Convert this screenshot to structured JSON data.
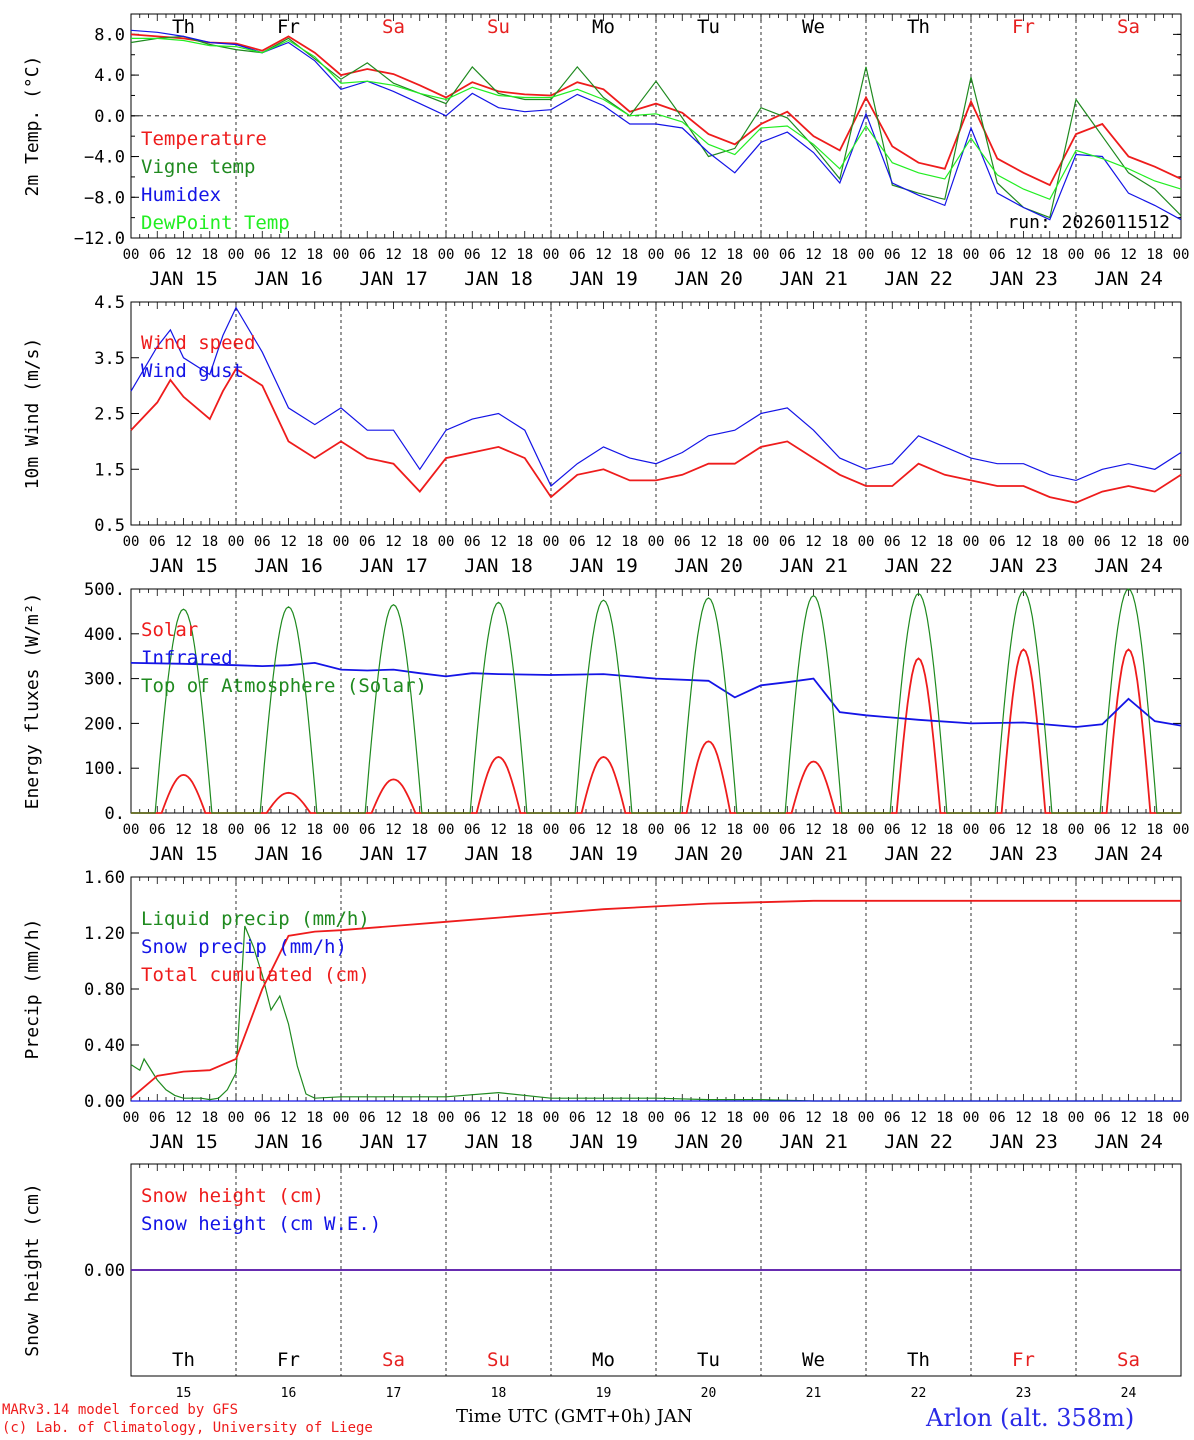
{
  "colors": {
    "red": "#ee1c1c",
    "green": "#1f8a1f",
    "blue": "#1414e6",
    "lightgreen": "#22ee22",
    "weekend": "#e62020",
    "location": "#2a2ae6"
  },
  "days": {
    "labels": [
      "Th",
      "Fr",
      "Sa",
      "Su",
      "Mo",
      "Tu",
      "We",
      "Th",
      "Fr",
      "Sa"
    ],
    "weekend": [
      false,
      false,
      true,
      true,
      false,
      false,
      false,
      false,
      true,
      true
    ],
    "dates": [
      "JAN 15",
      "JAN 16",
      "JAN 17",
      "JAN 18",
      "JAN 19",
      "JAN 20",
      "JAN 21",
      "JAN 22",
      "JAN 23",
      "JAN 24"
    ],
    "day_numbers": [
      "15",
      "16",
      "17",
      "18",
      "19",
      "20",
      "21",
      "22",
      "23",
      "24"
    ],
    "hour_ticks": [
      "00",
      "06",
      "12",
      "18"
    ],
    "final_hour_tick": "00"
  },
  "footer": {
    "model_line": "MARv3.14 model forced by GFS",
    "credit_line": "(c) Lab. of Climatology, University of Liege",
    "axis_title": "Time UTC (GMT+0h) JAN",
    "location": "Arlon (alt. 358m)"
  },
  "chart_data": [
    {
      "type": "line",
      "title": "",
      "ylabel": "2m Temp. (°C)",
      "ylim": [
        -12,
        10
      ],
      "yticks": [
        8,
        4,
        0,
        -4,
        -8,
        -12
      ],
      "ytick_labels": [
        "8.0",
        "4.0",
        "0.0",
        "−4.0",
        "−8.0",
        "−12.0"
      ],
      "zero_line": true,
      "annotation": "run: 2026011512",
      "x_units": "hours since JAN 15 00 UTC",
      "series": [
        {
          "name": "Temperature",
          "color": "red",
          "x": [
            0,
            6,
            12,
            18,
            24,
            30,
            36,
            42,
            48,
            54,
            60,
            66,
            72,
            78,
            84,
            90,
            96,
            102,
            108,
            114,
            120,
            126,
            132,
            138,
            144,
            150,
            156,
            162,
            168,
            174,
            180,
            186,
            192,
            198,
            204,
            210,
            216,
            222,
            228,
            234,
            240
          ],
          "y": [
            8.0,
            7.8,
            7.6,
            7.2,
            7.1,
            6.4,
            7.8,
            6.2,
            4.0,
            4.6,
            4.1,
            3.0,
            1.8,
            3.3,
            2.4,
            2.1,
            2.0,
            3.3,
            2.6,
            0.4,
            1.2,
            0.3,
            -1.8,
            -2.8,
            -0.8,
            0.4,
            -2.0,
            -3.4,
            1.8,
            -3.0,
            -4.6,
            -5.2,
            1.4,
            -4.2,
            -5.6,
            -6.8,
            -1.8,
            -0.8,
            -4.0,
            -5.0,
            -6.2
          ]
        },
        {
          "name": "Vigne temp",
          "color": "green",
          "x": [
            0,
            6,
            12,
            18,
            24,
            30,
            36,
            42,
            48,
            54,
            60,
            66,
            72,
            78,
            84,
            90,
            96,
            102,
            108,
            114,
            120,
            126,
            132,
            138,
            144,
            150,
            156,
            162,
            168,
            174,
            180,
            186,
            192,
            198,
            204,
            210,
            216,
            222,
            228,
            234,
            240
          ],
          "y": [
            7.2,
            7.6,
            7.8,
            7.0,
            6.5,
            6.2,
            7.6,
            5.6,
            3.6,
            5.2,
            3.2,
            2.2,
            1.2,
            4.8,
            2.2,
            1.6,
            1.6,
            4.8,
            1.8,
            0.0,
            3.4,
            -0.2,
            -4.0,
            -3.2,
            0.8,
            -0.2,
            -3.0,
            -6.2,
            4.8,
            -6.8,
            -7.6,
            -8.2,
            3.8,
            -6.6,
            -9.0,
            -10.0,
            1.6,
            -2.0,
            -5.6,
            -7.2,
            -9.8
          ]
        },
        {
          "name": "Humidex",
          "color": "blue",
          "x": [
            0,
            6,
            12,
            18,
            24,
            30,
            36,
            42,
            48,
            54,
            60,
            66,
            72,
            78,
            84,
            90,
            96,
            102,
            108,
            114,
            120,
            126,
            132,
            138,
            144,
            150,
            156,
            162,
            168,
            174,
            180,
            186,
            192,
            198,
            204,
            210,
            216,
            222,
            228,
            234,
            240
          ],
          "y": [
            8.4,
            8.2,
            7.8,
            7.2,
            7.0,
            6.2,
            7.2,
            5.4,
            2.6,
            3.4,
            2.4,
            1.2,
            0.0,
            2.2,
            0.8,
            0.4,
            0.6,
            2.1,
            1.0,
            -0.8,
            -0.8,
            -1.2,
            -3.6,
            -5.6,
            -2.6,
            -1.6,
            -3.6,
            -6.6,
            0.2,
            -6.6,
            -7.8,
            -8.8,
            -1.2,
            -7.6,
            -9.0,
            -10.2,
            -3.8,
            -4.0,
            -7.6,
            -8.8,
            -10.2
          ]
        },
        {
          "name": "DewPoint Temp",
          "color": "lightgreen",
          "x": [
            0,
            6,
            12,
            18,
            24,
            30,
            36,
            42,
            48,
            54,
            60,
            66,
            72,
            78,
            84,
            90,
            96,
            102,
            108,
            114,
            120,
            126,
            132,
            138,
            144,
            150,
            156,
            162,
            168,
            174,
            180,
            186,
            192,
            198,
            204,
            210,
            216,
            222,
            228,
            234,
            240
          ],
          "y": [
            7.6,
            7.6,
            7.4,
            6.9,
            6.8,
            6.2,
            7.4,
            5.8,
            3.2,
            3.4,
            3.0,
            2.2,
            1.6,
            2.8,
            2.0,
            1.8,
            1.8,
            2.6,
            1.6,
            0.0,
            0.2,
            -0.6,
            -2.8,
            -3.8,
            -1.2,
            -1.0,
            -2.8,
            -5.2,
            -1.0,
            -4.6,
            -5.6,
            -6.2,
            -2.2,
            -5.8,
            -7.2,
            -8.2,
            -3.4,
            -4.2,
            -5.2,
            -6.4,
            -7.2
          ]
        }
      ],
      "legend": [
        "Temperature",
        "Vigne temp",
        "Humidex",
        "DewPoint Temp"
      ]
    },
    {
      "type": "line",
      "title": "",
      "ylabel": "10m Wind (m/s)",
      "ylim": [
        0.5,
        4.5
      ],
      "yticks": [
        4.5,
        3.5,
        2.5,
        1.5,
        0.5
      ],
      "ytick_labels": [
        "4.5",
        "3.5",
        "2.5",
        "1.5",
        "0.5"
      ],
      "x_units": "hours since JAN 15 00 UTC",
      "series": [
        {
          "name": "Wind speed",
          "color": "red",
          "x": [
            0,
            6,
            9,
            12,
            18,
            21,
            24,
            30,
            36,
            42,
            48,
            54,
            60,
            66,
            72,
            78,
            84,
            90,
            96,
            102,
            108,
            114,
            120,
            126,
            132,
            138,
            144,
            150,
            156,
            162,
            168,
            174,
            180,
            186,
            192,
            198,
            204,
            210,
            216,
            222,
            228,
            234,
            240
          ],
          "y": [
            2.2,
            2.7,
            3.1,
            2.8,
            2.4,
            2.9,
            3.3,
            3.0,
            2.0,
            1.7,
            2.0,
            1.7,
            1.6,
            1.1,
            1.7,
            1.8,
            1.9,
            1.7,
            1.0,
            1.4,
            1.5,
            1.3,
            1.3,
            1.4,
            1.6,
            1.6,
            1.9,
            2.0,
            1.7,
            1.4,
            1.2,
            1.2,
            1.6,
            1.4,
            1.3,
            1.2,
            1.2,
            1.0,
            0.9,
            1.1,
            1.2,
            1.1,
            1.4
          ]
        },
        {
          "name": "Wind gust",
          "color": "blue",
          "x": [
            0,
            6,
            9,
            12,
            18,
            21,
            24,
            30,
            36,
            42,
            48,
            54,
            60,
            66,
            72,
            78,
            84,
            90,
            96,
            102,
            108,
            114,
            120,
            126,
            132,
            138,
            144,
            150,
            156,
            162,
            168,
            174,
            180,
            186,
            192,
            198,
            204,
            210,
            216,
            222,
            228,
            234,
            240
          ],
          "y": [
            2.9,
            3.7,
            4.0,
            3.5,
            3.2,
            3.9,
            4.4,
            3.6,
            2.6,
            2.3,
            2.6,
            2.2,
            2.2,
            1.5,
            2.2,
            2.4,
            2.5,
            2.2,
            1.2,
            1.6,
            1.9,
            1.7,
            1.6,
            1.8,
            2.1,
            2.2,
            2.5,
            2.6,
            2.2,
            1.7,
            1.5,
            1.6,
            2.1,
            1.9,
            1.7,
            1.6,
            1.6,
            1.4,
            1.3,
            1.5,
            1.6,
            1.5,
            1.8
          ]
        }
      ],
      "legend": [
        "Wind speed",
        "Wind gust"
      ]
    },
    {
      "type": "line",
      "title": "",
      "ylabel": "Energy fluxes (W/m²)",
      "ylim": [
        0,
        500
      ],
      "yticks": [
        500,
        400,
        300,
        200,
        100,
        0
      ],
      "ytick_labels": [
        "500.",
        "400.",
        "300.",
        "200.",
        "100.",
        "0."
      ],
      "x_units": "hours since JAN 15 00 UTC",
      "series": [
        {
          "name": "Solar",
          "color": "red",
          "daily_peak_hour": 12,
          "daily_peaks": [
            85,
            45,
            75,
            125,
            125,
            160,
            115,
            345,
            365,
            365
          ]
        },
        {
          "name": "Infrared",
          "color": "blue",
          "x": [
            0,
            12,
            24,
            30,
            36,
            42,
            48,
            54,
            60,
            66,
            72,
            78,
            84,
            96,
            108,
            120,
            132,
            138,
            144,
            150,
            156,
            162,
            168,
            180,
            192,
            204,
            216,
            222,
            228,
            234,
            240
          ],
          "y": [
            335,
            333,
            330,
            328,
            330,
            335,
            320,
            318,
            320,
            312,
            305,
            312,
            310,
            308,
            310,
            300,
            295,
            258,
            285,
            292,
            300,
            225,
            218,
            208,
            200,
            202,
            192,
            198,
            255,
            205,
            195
          ]
        },
        {
          "name": "Top of Atmosphere (Solar)",
          "color": "green",
          "daily_peak_hour": 12,
          "daily_peaks": [
            455,
            460,
            465,
            470,
            475,
            480,
            485,
            490,
            495,
            500
          ]
        }
      ],
      "legend": [
        "Solar",
        "Infrared",
        "Top of Atmosphere (Solar)"
      ]
    },
    {
      "type": "line",
      "title": "",
      "ylabel": "Precip (mm/h)",
      "ylim": [
        0,
        1.6
      ],
      "yticks": [
        1.6,
        1.2,
        0.8,
        0.4,
        0.0
      ],
      "ytick_labels": [
        "1.60",
        "1.20",
        "0.80",
        "0.40",
        "0.00"
      ],
      "x_units": "hours since JAN 15 00 UTC",
      "series": [
        {
          "name": "Liquid precip (mm/h)",
          "color": "green",
          "x": [
            0,
            2,
            3,
            4,
            6,
            8,
            10,
            12,
            16,
            18,
            20,
            22,
            24,
            26,
            28,
            30,
            32,
            34,
            36,
            38,
            40,
            42,
            48,
            60,
            72,
            84,
            96,
            108,
            120,
            132,
            144,
            156,
            240
          ],
          "y": [
            0.26,
            0.22,
            0.3,
            0.25,
            0.15,
            0.08,
            0.04,
            0.02,
            0.02,
            0.01,
            0.02,
            0.08,
            0.2,
            1.25,
            1.1,
            0.9,
            0.65,
            0.75,
            0.55,
            0.25,
            0.05,
            0.02,
            0.03,
            0.03,
            0.03,
            0.06,
            0.02,
            0.02,
            0.02,
            0.01,
            0.01,
            0.0,
            0.0
          ]
        },
        {
          "name": "Snow precip (mm/h)",
          "color": "blue",
          "x": [
            0,
            240
          ],
          "y": [
            0,
            0
          ]
        },
        {
          "name": "Total cumulated (cm)",
          "color": "red",
          "x": [
            0,
            6,
            12,
            18,
            24,
            30,
            36,
            42,
            48,
            60,
            72,
            84,
            96,
            108,
            120,
            132,
            144,
            156,
            168,
            240
          ],
          "y": [
            0.02,
            0.18,
            0.21,
            0.22,
            0.3,
            0.8,
            1.18,
            1.21,
            1.22,
            1.25,
            1.28,
            1.31,
            1.34,
            1.37,
            1.39,
            1.41,
            1.42,
            1.43,
            1.43,
            1.43
          ]
        }
      ],
      "legend": [
        "Liquid precip (mm/h)",
        "Snow precip (mm/h)",
        "Total cumulated (cm)"
      ]
    },
    {
      "type": "line",
      "title": "",
      "ylabel": "Snow height (cm)",
      "ylim": [
        -1,
        1
      ],
      "yticks": [
        0
      ],
      "ytick_labels": [
        "0.00"
      ],
      "x_units": "hours since JAN 15 00 UTC",
      "series": [
        {
          "name": "Snow height (cm)",
          "color": "red",
          "x": [
            0,
            240
          ],
          "y": [
            0,
            0
          ]
        },
        {
          "name": "Snow height (cm W.E.)",
          "color": "blue",
          "x": [
            0,
            240
          ],
          "y": [
            0,
            0
          ]
        }
      ],
      "legend": [
        "Snow height (cm)",
        "Snow height (cm W.E.)"
      ]
    }
  ]
}
